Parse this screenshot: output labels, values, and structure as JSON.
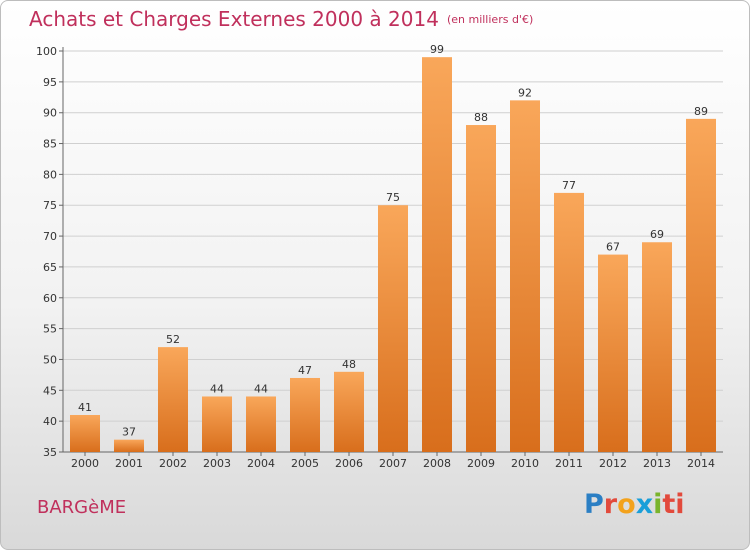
{
  "header": {
    "title": "Achats et Charges Externes 2000 à 2014",
    "unit": "(en milliers d'€)"
  },
  "footer": {
    "commune": "BARGèME",
    "logo_letters": [
      "P",
      "r",
      "o",
      "x",
      "i",
      "ti"
    ]
  },
  "colors": {
    "title": "#c0305c",
    "bar_top": "#f9a75a",
    "bar_bottom": "#d86e1c",
    "grid": "#d0d0d0"
  },
  "chart_data": {
    "type": "bar",
    "title": "Achats et Charges Externes 2000 à 2014",
    "subtitle": "(en milliers d'€)",
    "categories": [
      "2000",
      "2001",
      "2002",
      "2003",
      "2004",
      "2005",
      "2006",
      "2007",
      "2008",
      "2009",
      "2010",
      "2011",
      "2012",
      "2013",
      "2014"
    ],
    "values": [
      41,
      37,
      52,
      44,
      44,
      47,
      48,
      75,
      99,
      88,
      92,
      77,
      67,
      69,
      89
    ],
    "ylim": [
      35,
      100
    ],
    "yticks": [
      35,
      40,
      45,
      50,
      55,
      60,
      65,
      70,
      75,
      80,
      85,
      90,
      95,
      100
    ],
    "grid": true,
    "xlabel": "",
    "ylabel": ""
  }
}
